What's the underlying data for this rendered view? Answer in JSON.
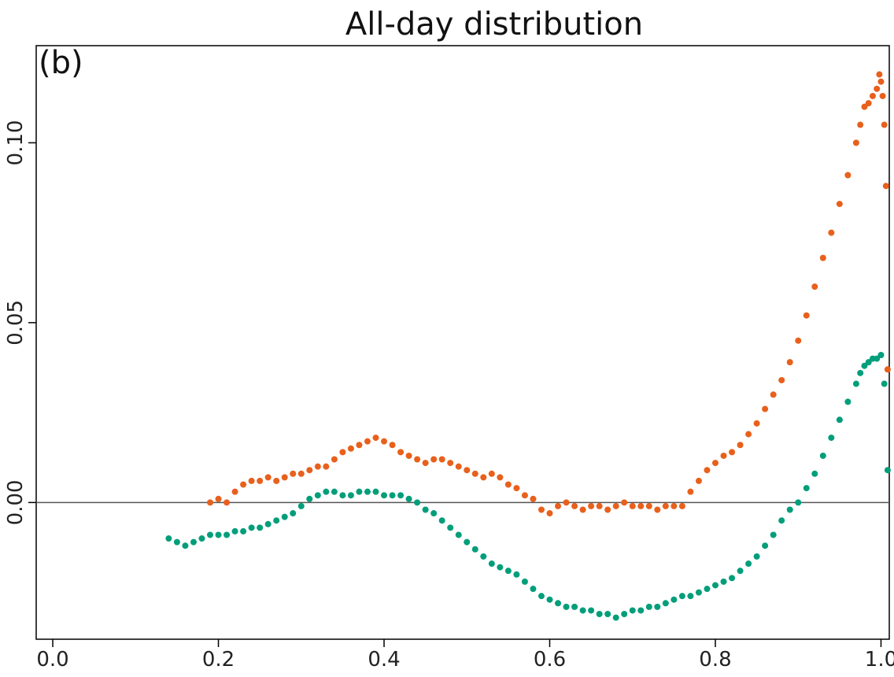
{
  "chart_data": {
    "type": "scatter",
    "title": "All-day distribution",
    "panel_label": "(b)",
    "xlabel": "",
    "ylabel": "",
    "xlim": [
      -0.02,
      1.01
    ],
    "ylim": [
      -0.038,
      0.127
    ],
    "x_ticks": [
      {
        "value": 0.0,
        "label": "0.0"
      },
      {
        "value": 0.2,
        "label": "0.2"
      },
      {
        "value": 0.4,
        "label": "0.4"
      },
      {
        "value": 0.6,
        "label": "0.6"
      },
      {
        "value": 0.8,
        "label": "0.8"
      },
      {
        "value": 1.0,
        "label": "1.0"
      }
    ],
    "y_ticks": [
      {
        "value": 0.0,
        "label": "0.00"
      },
      {
        "value": 0.05,
        "label": "0.05"
      },
      {
        "value": 0.1,
        "label": "0.10"
      }
    ],
    "reference_line_y": 0.0,
    "grid": false,
    "legend": "none",
    "series": [
      {
        "color": "#E8601C",
        "points": [
          [
            0.19,
            0.0
          ],
          [
            0.2,
            0.001
          ],
          [
            0.21,
            0.0
          ],
          [
            0.22,
            0.003
          ],
          [
            0.23,
            0.005
          ],
          [
            0.24,
            0.006
          ],
          [
            0.25,
            0.006
          ],
          [
            0.26,
            0.007
          ],
          [
            0.27,
            0.006
          ],
          [
            0.28,
            0.007
          ],
          [
            0.29,
            0.008
          ],
          [
            0.3,
            0.008
          ],
          [
            0.31,
            0.009
          ],
          [
            0.32,
            0.01
          ],
          [
            0.33,
            0.01
          ],
          [
            0.34,
            0.012
          ],
          [
            0.35,
            0.014
          ],
          [
            0.36,
            0.015
          ],
          [
            0.37,
            0.016
          ],
          [
            0.38,
            0.017
          ],
          [
            0.39,
            0.018
          ],
          [
            0.4,
            0.017
          ],
          [
            0.41,
            0.016
          ],
          [
            0.42,
            0.014
          ],
          [
            0.43,
            0.013
          ],
          [
            0.44,
            0.012
          ],
          [
            0.45,
            0.011
          ],
          [
            0.46,
            0.012
          ],
          [
            0.47,
            0.012
          ],
          [
            0.48,
            0.011
          ],
          [
            0.49,
            0.01
          ],
          [
            0.5,
            0.009
          ],
          [
            0.51,
            0.008
          ],
          [
            0.52,
            0.007
          ],
          [
            0.53,
            0.008
          ],
          [
            0.54,
            0.007
          ],
          [
            0.55,
            0.005
          ],
          [
            0.56,
            0.004
          ],
          [
            0.57,
            0.002
          ],
          [
            0.58,
            0.001
          ],
          [
            0.59,
            -0.002
          ],
          [
            0.6,
            -0.003
          ],
          [
            0.61,
            -0.001
          ],
          [
            0.62,
            0.0
          ],
          [
            0.63,
            -0.001
          ],
          [
            0.64,
            -0.002
          ],
          [
            0.65,
            -0.001
          ],
          [
            0.66,
            -0.001
          ],
          [
            0.67,
            -0.002
          ],
          [
            0.68,
            -0.001
          ],
          [
            0.69,
            0.0
          ],
          [
            0.7,
            -0.001
          ],
          [
            0.71,
            -0.001
          ],
          [
            0.72,
            -0.001
          ],
          [
            0.73,
            -0.002
          ],
          [
            0.74,
            -0.001
          ],
          [
            0.75,
            -0.001
          ],
          [
            0.76,
            -0.001
          ],
          [
            0.77,
            0.003
          ],
          [
            0.78,
            0.006
          ],
          [
            0.79,
            0.009
          ],
          [
            0.8,
            0.011
          ],
          [
            0.81,
            0.013
          ],
          [
            0.82,
            0.014
          ],
          [
            0.83,
            0.016
          ],
          [
            0.84,
            0.019
          ],
          [
            0.85,
            0.022
          ],
          [
            0.86,
            0.026
          ],
          [
            0.87,
            0.03
          ],
          [
            0.88,
            0.034
          ],
          [
            0.89,
            0.039
          ],
          [
            0.9,
            0.045
          ],
          [
            0.91,
            0.052
          ],
          [
            0.92,
            0.06
          ],
          [
            0.93,
            0.068
          ],
          [
            0.94,
            0.075
          ],
          [
            0.95,
            0.083
          ],
          [
            0.96,
            0.091
          ],
          [
            0.97,
            0.1
          ],
          [
            0.975,
            0.105
          ],
          [
            0.98,
            0.11
          ],
          [
            0.985,
            0.111
          ],
          [
            0.99,
            0.113
          ],
          [
            0.995,
            0.115
          ],
          [
            0.998,
            0.119
          ],
          [
            1.0,
            0.117
          ],
          [
            1.002,
            0.113
          ],
          [
            1.004,
            0.105
          ],
          [
            1.006,
            0.088
          ],
          [
            1.008,
            0.037
          ]
        ]
      },
      {
        "color": "#009E7A",
        "points": [
          [
            0.14,
            -0.01
          ],
          [
            0.15,
            -0.011
          ],
          [
            0.16,
            -0.012
          ],
          [
            0.17,
            -0.011
          ],
          [
            0.18,
            -0.01
          ],
          [
            0.19,
            -0.009
          ],
          [
            0.2,
            -0.009
          ],
          [
            0.21,
            -0.009
          ],
          [
            0.22,
            -0.008
          ],
          [
            0.23,
            -0.008
          ],
          [
            0.24,
            -0.007
          ],
          [
            0.25,
            -0.007
          ],
          [
            0.26,
            -0.006
          ],
          [
            0.27,
            -0.005
          ],
          [
            0.28,
            -0.004
          ],
          [
            0.29,
            -0.003
          ],
          [
            0.3,
            -0.001
          ],
          [
            0.31,
            0.001
          ],
          [
            0.32,
            0.002
          ],
          [
            0.33,
            0.003
          ],
          [
            0.34,
            0.003
          ],
          [
            0.35,
            0.002
          ],
          [
            0.36,
            0.002
          ],
          [
            0.37,
            0.003
          ],
          [
            0.38,
            0.003
          ],
          [
            0.39,
            0.003
          ],
          [
            0.4,
            0.002
          ],
          [
            0.41,
            0.002
          ],
          [
            0.42,
            0.002
          ],
          [
            0.43,
            0.001
          ],
          [
            0.44,
            0.0
          ],
          [
            0.45,
            -0.002
          ],
          [
            0.46,
            -0.003
          ],
          [
            0.47,
            -0.005
          ],
          [
            0.48,
            -0.007
          ],
          [
            0.49,
            -0.009
          ],
          [
            0.5,
            -0.011
          ],
          [
            0.51,
            -0.013
          ],
          [
            0.52,
            -0.015
          ],
          [
            0.53,
            -0.017
          ],
          [
            0.54,
            -0.018
          ],
          [
            0.55,
            -0.019
          ],
          [
            0.56,
            -0.02
          ],
          [
            0.57,
            -0.022
          ],
          [
            0.58,
            -0.024
          ],
          [
            0.59,
            -0.026
          ],
          [
            0.6,
            -0.027
          ],
          [
            0.61,
            -0.028
          ],
          [
            0.62,
            -0.029
          ],
          [
            0.63,
            -0.029
          ],
          [
            0.64,
            -0.03
          ],
          [
            0.65,
            -0.03
          ],
          [
            0.66,
            -0.031
          ],
          [
            0.67,
            -0.031
          ],
          [
            0.68,
            -0.032
          ],
          [
            0.69,
            -0.031
          ],
          [
            0.7,
            -0.03
          ],
          [
            0.71,
            -0.03
          ],
          [
            0.72,
            -0.029
          ],
          [
            0.73,
            -0.029
          ],
          [
            0.74,
            -0.028
          ],
          [
            0.75,
            -0.027
          ],
          [
            0.76,
            -0.026
          ],
          [
            0.77,
            -0.026
          ],
          [
            0.78,
            -0.025
          ],
          [
            0.79,
            -0.024
          ],
          [
            0.8,
            -0.023
          ],
          [
            0.81,
            -0.022
          ],
          [
            0.82,
            -0.021
          ],
          [
            0.83,
            -0.019
          ],
          [
            0.84,
            -0.017
          ],
          [
            0.85,
            -0.015
          ],
          [
            0.86,
            -0.012
          ],
          [
            0.87,
            -0.009
          ],
          [
            0.88,
            -0.005
          ],
          [
            0.89,
            -0.002
          ],
          [
            0.9,
            0.0
          ],
          [
            0.91,
            0.004
          ],
          [
            0.92,
            0.008
          ],
          [
            0.93,
            0.013
          ],
          [
            0.94,
            0.018
          ],
          [
            0.95,
            0.023
          ],
          [
            0.96,
            0.028
          ],
          [
            0.97,
            0.033
          ],
          [
            0.975,
            0.036
          ],
          [
            0.98,
            0.038
          ],
          [
            0.985,
            0.039
          ],
          [
            0.99,
            0.04
          ],
          [
            0.995,
            0.04
          ],
          [
            1.0,
            0.041
          ],
          [
            1.004,
            0.033
          ],
          [
            1.008,
            0.009
          ]
        ]
      }
    ]
  }
}
